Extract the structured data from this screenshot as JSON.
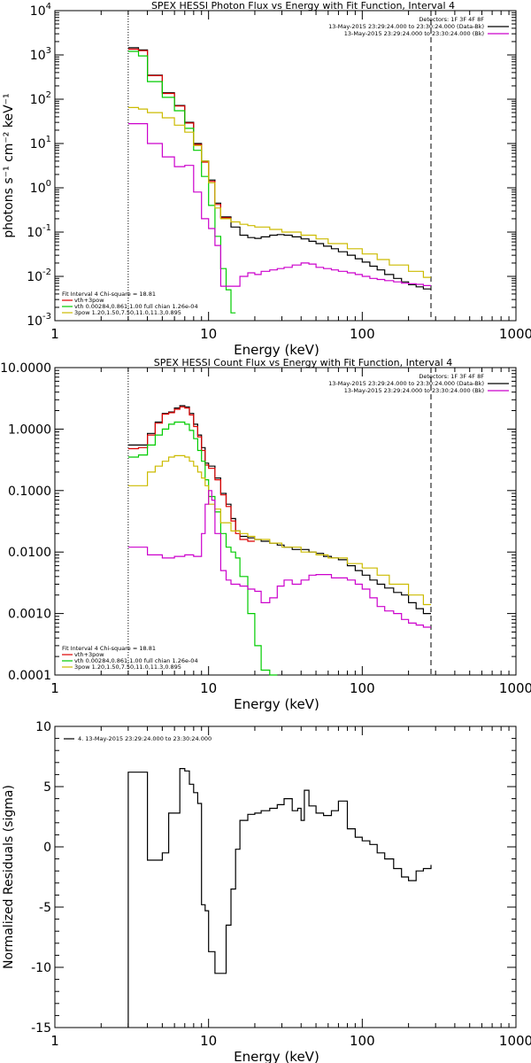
{
  "chart_data": [
    {
      "type": "line",
      "title": "SPEX HESSI Photon Flux vs Energy with Fit Function, Interval 4",
      "xlabel": "Energy (keV)",
      "ylabel": "photons s⁻¹ cm⁻² keV⁻¹",
      "xscale": "log",
      "yscale": "log",
      "xlim": [
        1,
        1000
      ],
      "ylim": [
        0.001,
        10000
      ],
      "xticks": [
        {
          "v": 1,
          "label": "1"
        },
        {
          "v": 10,
          "label": "10"
        },
        {
          "v": 100,
          "label": "100"
        },
        {
          "v": 1000,
          "label": "1000"
        }
      ],
      "yticks": [
        {
          "v": 0.001,
          "base": "10",
          "exp": "-3"
        },
        {
          "v": 0.01,
          "base": "10",
          "exp": "-2"
        },
        {
          "v": 0.1,
          "base": "10",
          "exp": "-1"
        },
        {
          "v": 1,
          "base": "10",
          "exp": "0"
        },
        {
          "v": 10,
          "base": "10",
          "exp": "1"
        },
        {
          "v": 100,
          "base": "10",
          "exp": "2"
        },
        {
          "v": 1000,
          "base": "10",
          "exp": "3"
        },
        {
          "v": 10000,
          "base": "10",
          "exp": "4"
        }
      ],
      "vlines": [
        {
          "x": 3,
          "style": "dotted"
        },
        {
          "x": 280,
          "style": "dashed"
        }
      ],
      "legend_right": [
        {
          "text": "Detectors: 1F 3F 4F 8F",
          "color": "#000000",
          "line": false
        },
        {
          "text": "13-May-2015 23:29:24.000 to 23:30:24.000 (Data-Bk)",
          "color": "#000000",
          "line": true
        },
        {
          "text": "13-May-2015 23:29:24.000 to 23:30:24.000 (Bk)",
          "color": "#cc00cc",
          "line": true
        }
      ],
      "legend_left": [
        {
          "text": "Fit Interval  4   Chi-square = 18.81",
          "color": "#000000",
          "line": false
        },
        {
          "text": "vth+3pow",
          "color": "#dd0000",
          "line": true
        },
        {
          "text": "vth 0.00284,0.861,1.00  full chian 1.26e-04",
          "color": "#00cc00",
          "line": true
        },
        {
          "text": "3pow 1.20,1.50,7.50,11.0,11.3,0.895",
          "color": "#ccbb00",
          "line": true
        }
      ],
      "series": [
        {
          "color": "#000000",
          "edges": [
            3,
            3.5,
            4,
            5,
            6,
            7,
            8,
            9,
            10,
            11,
            12,
            14,
            16,
            18,
            20,
            22,
            25,
            28,
            31,
            35,
            40,
            45,
            50,
            56,
            63,
            70,
            80,
            90,
            100,
            112,
            125,
            140,
            160,
            180,
            200,
            224,
            250,
            280
          ],
          "values": [
            1450,
            1300,
            350,
            140,
            72,
            30,
            10,
            4,
            1.5,
            0.45,
            0.22,
            0.13,
            0.085,
            0.075,
            0.072,
            0.078,
            0.085,
            0.088,
            0.085,
            0.078,
            0.07,
            0.062,
            0.055,
            0.048,
            0.042,
            0.036,
            0.03,
            0.025,
            0.021,
            0.017,
            0.014,
            0.011,
            0.009,
            0.0075,
            0.0065,
            0.0058,
            0.0052
          ]
        },
        {
          "color": "#dd0000",
          "edges": [
            3,
            3.5,
            4,
            5,
            6,
            7,
            8,
            9,
            10,
            11,
            12,
            14
          ],
          "values": [
            1350,
            1250,
            340,
            135,
            70,
            29,
            9.5,
            3.8,
            1.4,
            0.42,
            0.21
          ]
        },
        {
          "color": "#00cc00",
          "edges": [
            3,
            3.5,
            4,
            5,
            6,
            7,
            8,
            9,
            10,
            11,
            12,
            13,
            14,
            15
          ],
          "values": [
            1200,
            950,
            250,
            110,
            55,
            22,
            7,
            1.8,
            0.4,
            0.08,
            0.015,
            0.005,
            0.0015
          ]
        },
        {
          "color": "#ccbb00",
          "edges": [
            3,
            3.5,
            4,
            5,
            6,
            7,
            8,
            9,
            10,
            11,
            12,
            14,
            16,
            18,
            20,
            25,
            30,
            40,
            50,
            60,
            80,
            100,
            125,
            150,
            200,
            250,
            280
          ],
          "values": [
            65,
            60,
            50,
            38,
            26,
            18,
            9,
            4,
            1.3,
            0.35,
            0.2,
            0.17,
            0.15,
            0.14,
            0.13,
            0.115,
            0.1,
            0.085,
            0.07,
            0.055,
            0.042,
            0.032,
            0.024,
            0.018,
            0.013,
            0.0095
          ]
        },
        {
          "color": "#cc00cc",
          "edges": [
            3,
            4,
            5,
            6,
            7,
            8,
            9,
            10,
            11,
            12,
            14,
            16,
            18,
            20,
            22,
            25,
            28,
            31,
            35,
            40,
            45,
            50,
            56,
            63,
            70,
            80,
            90,
            100,
            112,
            125,
            140,
            160,
            180,
            200,
            224,
            250,
            280
          ],
          "values": [
            28,
            10,
            5,
            3,
            3.2,
            0.8,
            0.2,
            0.12,
            0.05,
            0.006,
            0.006,
            0.01,
            0.012,
            0.011,
            0.013,
            0.014,
            0.015,
            0.016,
            0.018,
            0.02,
            0.019,
            0.016,
            0.015,
            0.014,
            0.013,
            0.012,
            0.011,
            0.01,
            0.009,
            0.0085,
            0.008,
            0.0075,
            0.007,
            0.0068,
            0.0066,
            0.0062
          ]
        }
      ]
    },
    {
      "type": "line",
      "title": "SPEX HESSI Count Flux vs Energy with Fit Function, Interval 4",
      "xlabel": "Energy (keV)",
      "ylabel": "",
      "xscale": "log",
      "yscale": "log",
      "xlim": [
        1,
        1000
      ],
      "ylim": [
        0.0001,
        10
      ],
      "xticks": [
        {
          "v": 1,
          "label": "1"
        },
        {
          "v": 10,
          "label": "10"
        },
        {
          "v": 100,
          "label": "100"
        },
        {
          "v": 1000,
          "label": "1000"
        }
      ],
      "yticks": [
        {
          "v": 0.0001,
          "label": "0.0001"
        },
        {
          "v": 0.001,
          "label": "0.0010"
        },
        {
          "v": 0.01,
          "label": "0.0100"
        },
        {
          "v": 0.1,
          "label": "0.1000"
        },
        {
          "v": 1,
          "label": "1.0000"
        },
        {
          "v": 10,
          "label": "10.0000"
        }
      ],
      "vlines": [
        {
          "x": 3,
          "style": "dotted"
        },
        {
          "x": 280,
          "style": "dashed"
        }
      ],
      "legend_right": [
        {
          "text": "Detectors: 1F 3F 4F 8F",
          "color": "#000000",
          "line": false
        },
        {
          "text": "13-May-2015 23:29:24.000 to 23:30:24.000 (Data-Bk)",
          "color": "#000000",
          "line": true
        },
        {
          "text": "13-May-2015 23:29:24.000 to 23:30:24.000 (Bk)",
          "color": "#cc00cc",
          "line": true
        }
      ],
      "legend_left": [
        {
          "text": "Fit Interval  4   Chi-square = 18.81",
          "color": "#000000",
          "line": false
        },
        {
          "text": "vth+3pow",
          "color": "#dd0000",
          "line": true
        },
        {
          "text": "vth 0.00284,0.861,1.00  full chian 1.26e-04",
          "color": "#00cc00",
          "line": true
        },
        {
          "text": "3pow 1.20,1.50,7.50,11.0,11.3,0.895",
          "color": "#ccbb00",
          "line": true
        }
      ],
      "series": [
        {
          "color": "#000000",
          "edges": [
            3,
            3.5,
            4,
            4.5,
            5,
            5.5,
            6,
            6.5,
            7,
            7.5,
            8,
            8.5,
            9,
            9.5,
            10,
            11,
            12,
            13,
            14,
            15,
            16,
            18,
            20,
            22,
            25,
            28,
            31,
            35,
            40,
            45,
            50,
            56,
            63,
            70,
            80,
            90,
            100,
            112,
            125,
            140,
            160,
            180,
            200,
            224,
            250,
            280
          ],
          "values": [
            0.55,
            0.55,
            0.85,
            1.3,
            1.8,
            1.9,
            2.2,
            2.4,
            2.3,
            1.8,
            1.2,
            0.8,
            0.5,
            0.28,
            0.25,
            0.16,
            0.09,
            0.06,
            0.035,
            0.022,
            0.018,
            0.017,
            0.016,
            0.015,
            0.014,
            0.013,
            0.012,
            0.011,
            0.011,
            0.01,
            0.0095,
            0.0085,
            0.008,
            0.0075,
            0.006,
            0.005,
            0.0042,
            0.0035,
            0.003,
            0.0026,
            0.0022,
            0.002,
            0.0015,
            0.0012,
            0.001
          ]
        },
        {
          "color": "#dd0000",
          "edges": [
            3,
            3.5,
            4,
            4.5,
            5,
            5.5,
            6,
            6.5,
            7,
            7.5,
            8,
            8.5,
            9,
            9.5,
            10,
            11,
            12,
            13,
            14,
            15,
            16,
            18,
            20
          ],
          "values": [
            0.48,
            0.5,
            0.8,
            1.25,
            1.75,
            1.85,
            2.1,
            2.3,
            2.2,
            1.7,
            1.1,
            0.75,
            0.45,
            0.26,
            0.23,
            0.15,
            0.085,
            0.055,
            0.032,
            0.02,
            0.016,
            0.015
          ]
        },
        {
          "color": "#00cc00",
          "edges": [
            3,
            3.5,
            4,
            4.5,
            5,
            5.5,
            6,
            6.5,
            7,
            7.5,
            8,
            8.5,
            9,
            9.5,
            10,
            11,
            12,
            13,
            14,
            15,
            16,
            18,
            20,
            22,
            25,
            28
          ],
          "values": [
            0.35,
            0.38,
            0.55,
            0.8,
            1.0,
            1.2,
            1.3,
            1.3,
            1.2,
            0.95,
            0.7,
            0.45,
            0.3,
            0.15,
            0.08,
            0.045,
            0.02,
            0.012,
            0.01,
            0.008,
            0.004,
            0.001,
            0.0003,
            0.00012,
            0.0001
          ]
        },
        {
          "color": "#ccbb00",
          "edges": [
            3,
            3.5,
            4,
            4.5,
            5,
            5.5,
            6,
            6.5,
            7,
            7.5,
            8,
            8.5,
            9,
            9.5,
            10,
            11,
            12,
            14,
            16,
            18,
            20,
            25,
            30,
            40,
            50,
            60,
            80,
            100,
            125,
            150,
            200,
            250,
            280
          ],
          "values": [
            0.12,
            0.12,
            0.2,
            0.25,
            0.3,
            0.35,
            0.37,
            0.37,
            0.35,
            0.3,
            0.25,
            0.2,
            0.16,
            0.12,
            0.06,
            0.05,
            0.03,
            0.022,
            0.02,
            0.018,
            0.016,
            0.014,
            0.012,
            0.01,
            0.009,
            0.008,
            0.0065,
            0.0055,
            0.0042,
            0.003,
            0.002,
            0.0014
          ]
        },
        {
          "color": "#cc00cc",
          "edges": [
            3,
            4,
            5,
            6,
            7,
            8,
            9,
            9.5,
            10,
            10.5,
            11,
            12,
            13,
            14,
            16,
            18,
            20,
            22,
            25,
            28,
            31,
            35,
            40,
            45,
            50,
            56,
            63,
            70,
            80,
            90,
            100,
            112,
            125,
            140,
            160,
            180,
            200,
            224,
            250,
            280
          ],
          "values": [
            0.012,
            0.009,
            0.008,
            0.0085,
            0.009,
            0.0085,
            0.02,
            0.06,
            0.1,
            0.07,
            0.02,
            0.005,
            0.0035,
            0.003,
            0.0028,
            0.0025,
            0.0023,
            0.0015,
            0.0018,
            0.0028,
            0.0035,
            0.003,
            0.0035,
            0.0042,
            0.0043,
            0.0043,
            0.0038,
            0.0038,
            0.0035,
            0.003,
            0.0025,
            0.0018,
            0.0013,
            0.0011,
            0.001,
            0.0008,
            0.0007,
            0.00065,
            0.0006
          ]
        }
      ]
    },
    {
      "type": "line",
      "title": "",
      "xlabel": "Energy (keV)",
      "ylabel": "Normalized Residuals (sigma)",
      "xscale": "log",
      "yscale": "linear",
      "xlim": [
        1,
        1000
      ],
      "ylim": [
        -15,
        10
      ],
      "xticks": [
        {
          "v": 1,
          "label": "1"
        },
        {
          "v": 10,
          "label": "10"
        },
        {
          "v": 100,
          "label": "100"
        },
        {
          "v": 1000,
          "label": "1000"
        }
      ],
      "yticks": [
        {
          "v": 10,
          "label": "10"
        },
        {
          "v": 5,
          "label": "5"
        },
        {
          "v": 0,
          "label": "0"
        },
        {
          "v": -5,
          "label": "-5"
        },
        {
          "v": -10,
          "label": "-10"
        },
        {
          "v": -15,
          "label": "-15"
        }
      ],
      "vlines": [],
      "legend_right": [],
      "legend_left": [],
      "legend_top": [
        {
          "text": "4. 13-May-2015 23:29:24.000 to 23:30:24.000",
          "color": "#000000",
          "line": true
        }
      ],
      "series": [
        {
          "color": "#000000",
          "close_to": -15,
          "edges": [
            3,
            3.5,
            4,
            4.5,
            5,
            5.5,
            6,
            6.5,
            7,
            7.5,
            8,
            8.5,
            9,
            9.5,
            10,
            11,
            12,
            13,
            14,
            15,
            16,
            18,
            20,
            22,
            25,
            28,
            31,
            35,
            38,
            40,
            42,
            45,
            50,
            56,
            63,
            70,
            80,
            90,
            100,
            112,
            125,
            140,
            160,
            180,
            200,
            224,
            250,
            280
          ],
          "values": [
            6.2,
            6.2,
            -1.1,
            -1.1,
            -0.5,
            2.8,
            2.8,
            6.5,
            6.3,
            5.2,
            4.5,
            3.6,
            -4.8,
            -5.3,
            -8.7,
            -10.5,
            -10.5,
            -6.5,
            -3.5,
            -0.2,
            2.2,
            2.7,
            2.8,
            3.0,
            3.2,
            3.5,
            4.0,
            3.0,
            3.2,
            2.2,
            4.7,
            3.4,
            2.8,
            2.6,
            3.0,
            3.8,
            1.5,
            0.8,
            0.5,
            0.2,
            -0.5,
            -1.0,
            -1.8,
            -2.5,
            -2.8,
            -2.0,
            -1.8,
            -1.5
          ]
        }
      ]
    }
  ]
}
